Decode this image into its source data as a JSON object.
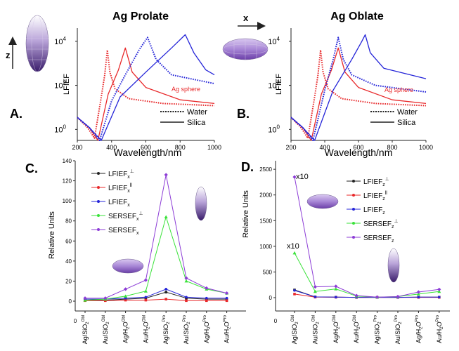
{
  "charts": {
    "a": {
      "panel_label": "A.",
      "title": "Ag Prolate",
      "xlabel": "Wavelength/nm",
      "ylabel": "LFIEF",
      "xticks": [
        "200",
        "400",
        "600",
        "800",
        "1000"
      ],
      "yticks": [
        "10",
        "10",
        "10"
      ],
      "ytick_exps": [
        "0",
        "2",
        "4"
      ],
      "annotation": "Ag sphere",
      "legend": {
        "water": "Water",
        "silica": "Silica"
      }
    },
    "b": {
      "panel_label": "B.",
      "title": "Ag Oblate",
      "xlabel": "Wavelength/nm",
      "ylabel": "LFIEF",
      "xticks": [
        "200",
        "400",
        "600",
        "800",
        "1000"
      ],
      "yticks": [
        "10",
        "10",
        "10"
      ],
      "ytick_exps": [
        "0",
        "2",
        "4"
      ],
      "annotation": "Ag sphere",
      "legend": {
        "water": "Water",
        "silica": "Silica"
      }
    },
    "c": {
      "panel_label": "C.",
      "ylabel": "Relative Units",
      "yticks": [
        "0",
        "20",
        "40",
        "60",
        "80",
        "100",
        "120",
        "140"
      ],
      "legend": [
        {
          "base": "LFIEF",
          "sub": "x",
          "sup": "⊥"
        },
        {
          "base": "LFIEF",
          "sub": "x",
          "sup": "ll"
        },
        {
          "base": "LFIEF",
          "sub": "x",
          "sup": ""
        },
        {
          "base": "SERSEF",
          "sub": "x",
          "sup": "⊥"
        },
        {
          "base": "SERSEF",
          "sub": "x",
          "sup": ""
        }
      ]
    },
    "d": {
      "panel_label": "D.",
      "ylabel": "Relative Units",
      "yticks": [
        "0",
        "500",
        "1000",
        "1500",
        "2000",
        "2500"
      ],
      "annotations": [
        "x10",
        "x10"
      ],
      "legend": [
        {
          "base": "LFIEF",
          "sub": "z",
          "sup": "⊥"
        },
        {
          "base": "LFIEF",
          "sub": "z",
          "sup": "ll"
        },
        {
          "base": "LFIEF",
          "sub": "z",
          "sup": ""
        },
        {
          "base": "SERSEF",
          "sub": "z",
          "sup": "⊥"
        },
        {
          "base": "SERSEF",
          "sub": "z",
          "sup": ""
        }
      ]
    },
    "shared": {
      "x_zero": "0",
      "categories": [
        {
          "main": "Ag/SiO",
          "sub": "2",
          "sup": "Obl"
        },
        {
          "main": "Au/SiO",
          "sub": "2",
          "sup": "Obl"
        },
        {
          "main": "Ag/H",
          "sub": "2",
          "tail": "O",
          "sup": "Obl"
        },
        {
          "main": "Au/H",
          "sub": "2",
          "tail": "O",
          "sup": "Obl"
        },
        {
          "main": "Ag/SiO",
          "sub": "2",
          "sup": "Pro"
        },
        {
          "main": "Au/SiO",
          "sub": "2",
          "sup": "Pro"
        },
        {
          "main": "Ag/H",
          "sub": "2",
          "tail": "O",
          "sup": "Pro"
        },
        {
          "main": "Au/H",
          "sub": "2",
          "tail": "O",
          "sup": "Pro"
        }
      ],
      "axis_label_x": "x",
      "axis_label_z": "z"
    }
  },
  "colors": {
    "red": "#e8282a",
    "blue": "#2424d8",
    "green": "#39e239",
    "purple": "#8c3cd6",
    "black": "#222222"
  },
  "chart_data": [
    {
      "type": "line",
      "title": "Ag Prolate",
      "xlabel": "Wavelength/nm",
      "ylabel": "LFIEF",
      "xlim": [
        200,
        1000
      ],
      "ylog": true,
      "annotation": "Ag sphere",
      "series": [
        {
          "name": "Water",
          "material": "Ag sphere",
          "color": "red",
          "style": "dotted",
          "peak_x": 375,
          "peak_y": 4000,
          "x": [
            200,
            260,
            300,
            340,
            360,
            375,
            390,
            420,
            500,
            700,
            1000
          ],
          "y": [
            3.5,
            1.2,
            0.4,
            30,
            300,
            4000,
            400,
            70,
            25,
            15,
            12
          ]
        },
        {
          "name": "Silica",
          "material": "Ag sphere",
          "color": "red",
          "style": "solid",
          "x": [
            200,
            270,
            320,
            380,
            440,
            480,
            520,
            600,
            800,
            1000
          ],
          "y": [
            3.5,
            1.2,
            0.3,
            40,
            500,
            5000,
            400,
            80,
            22,
            15
          ]
        },
        {
          "name": "Water",
          "material": "Ag prolate",
          "color": "blue",
          "style": "dotted",
          "x": [
            200,
            270,
            330,
            400,
            480,
            560,
            610,
            660,
            750,
            1000
          ],
          "y": [
            3.5,
            1.2,
            0.3,
            20,
            300,
            4000,
            15000,
            1500,
            300,
            120
          ]
        },
        {
          "name": "Silica",
          "material": "Ag prolate",
          "color": "blue",
          "style": "solid",
          "x": [
            200,
            270,
            340,
            450,
            600,
            750,
            830,
            880,
            950,
            1000
          ],
          "y": [
            3.5,
            1.2,
            0.3,
            30,
            400,
            5000,
            20000,
            3000,
            500,
            300
          ]
        }
      ]
    },
    {
      "type": "line",
      "title": "Ag Oblate",
      "xlabel": "Wavelength/nm",
      "ylabel": "LFIEF",
      "xlim": [
        200,
        1000
      ],
      "ylog": true,
      "annotation": "Ag sphere",
      "series": [
        {
          "name": "Water",
          "material": "Ag sphere",
          "color": "red",
          "style": "dotted",
          "x": [
            200,
            260,
            300,
            340,
            360,
            375,
            390,
            420,
            500,
            700,
            1000
          ],
          "y": [
            3.5,
            1.2,
            0.4,
            30,
            300,
            4000,
            400,
            70,
            25,
            15,
            12
          ]
        },
        {
          "name": "Silica",
          "material": "Ag sphere",
          "color": "red",
          "style": "solid",
          "x": [
            200,
            270,
            320,
            380,
            440,
            480,
            520,
            600,
            800,
            1000
          ],
          "y": [
            3.5,
            1.2,
            0.3,
            40,
            500,
            5000,
            400,
            80,
            22,
            15
          ]
        },
        {
          "name": "Water",
          "material": "Ag oblate",
          "color": "blue",
          "style": "dotted",
          "x": [
            200,
            270,
            330,
            400,
            450,
            480,
            510,
            560,
            700,
            1000
          ],
          "y": [
            3.5,
            1.2,
            0.3,
            60,
            1500,
            15000,
            1500,
            300,
            100,
            50
          ]
        },
        {
          "name": "Silica",
          "material": "Ag oblate",
          "color": "blue",
          "style": "solid",
          "x": [
            200,
            270,
            340,
            450,
            560,
            620,
            640,
            670,
            750,
            1000
          ],
          "y": [
            3.5,
            1.2,
            0.3,
            60,
            1500,
            10000,
            20000,
            3000,
            600,
            200
          ]
        }
      ]
    },
    {
      "type": "line",
      "ylabel": "Relative Units",
      "ylim": [
        0,
        140
      ],
      "categories": [
        "Ag/SiO2 Obl",
        "Au/SiO2 Obl",
        "Ag/H2O Obl",
        "Au/H2O Obl",
        "Ag/SiO2 Pro",
        "Au/SiO2 Pro",
        "Ag/H2O Pro",
        "Au/H2O Pro"
      ],
      "series": [
        {
          "name": "LFIEF x ⊥",
          "color": "black",
          "values": [
            1,
            1,
            2,
            3,
            9,
            3,
            2,
            2
          ]
        },
        {
          "name": "LFIEF x ll",
          "color": "red",
          "values": [
            0.5,
            0.5,
            1,
            1,
            2,
            0.5,
            0.5,
            0.5
          ]
        },
        {
          "name": "LFIEF x",
          "color": "blue",
          "values": [
            2,
            2,
            3,
            4,
            12,
            4,
            3,
            3
          ]
        },
        {
          "name": "SERSEF x ⊥",
          "color": "green",
          "values": [
            1,
            2,
            5,
            10,
            84,
            20,
            12,
            8
          ]
        },
        {
          "name": "SERSEF x",
          "color": "purple",
          "values": [
            3,
            3,
            12,
            21,
            126,
            23,
            13,
            8
          ]
        }
      ]
    },
    {
      "type": "line",
      "ylabel": "Relative Units",
      "ylim": [
        0,
        2500
      ],
      "categories": [
        "Ag/SiO2 Obl",
        "Au/SiO2 Obl",
        "Ag/H2O Obl",
        "Au/H2O Obl",
        "Ag/SiO2 Pro",
        "Au/SiO2 Pro",
        "Ag/H2O Pro",
        "Au/H2O Pro"
      ],
      "annotations": [
        "x10",
        "x10"
      ],
      "series": [
        {
          "name": "LFIEF z ⊥",
          "color": "black",
          "values": [
            150,
            15,
            10,
            5,
            5,
            5,
            10,
            10
          ]
        },
        {
          "name": "LFIEF z ll",
          "color": "red",
          "values": [
            70,
            10,
            8,
            5,
            5,
            5,
            5,
            5
          ]
        },
        {
          "name": "LFIEF z",
          "color": "blue",
          "values": [
            140,
            15,
            10,
            5,
            5,
            5,
            10,
            10
          ]
        },
        {
          "name": "SERSEF z ⊥",
          "color": "green",
          "values": [
            870,
            120,
            170,
            30,
            10,
            20,
            70,
            120
          ]
        },
        {
          "name": "SERSEF z",
          "color": "purple",
          "values": [
            2350,
            210,
            220,
            40,
            10,
            20,
            110,
            160
          ]
        }
      ]
    }
  ]
}
